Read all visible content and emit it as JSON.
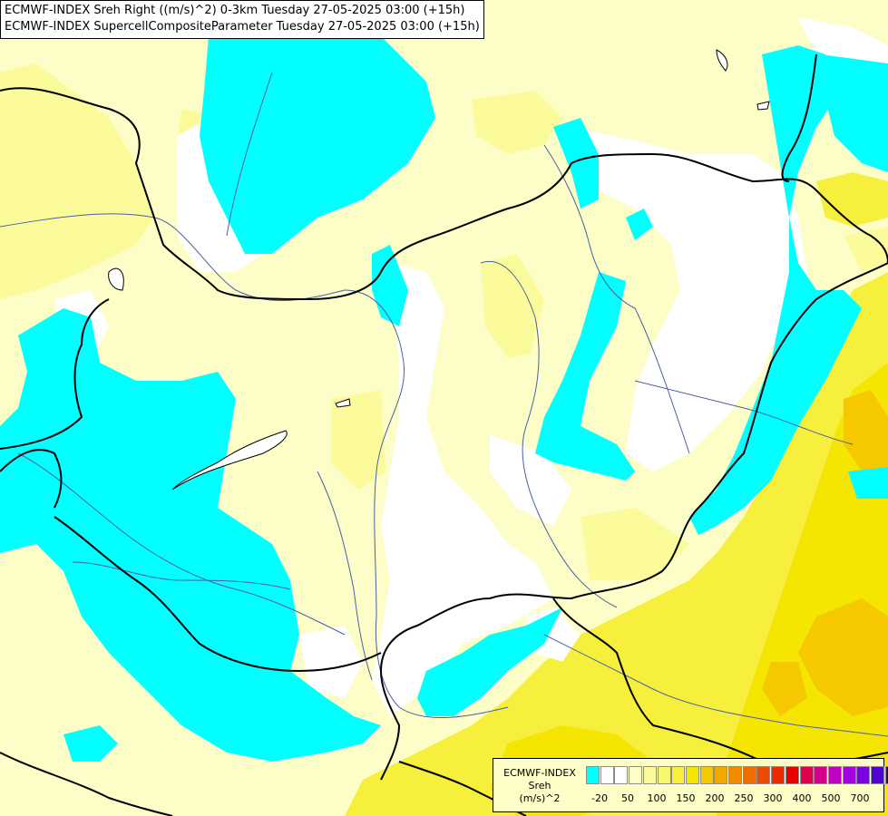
{
  "header": {
    "title_line1": "ECMWF-INDEX Sreh Right ((m/s)^2) 0-3km Tuesday 27-05-2025 03:00 (+15h)",
    "title_line2": "ECMWF-INDEX SupercellCompositeParameter Tuesday 27-05-2025 03:00 (+15h)"
  },
  "legend": {
    "label_line1": "ECMWF-INDEX",
    "label_line2": "Sreh",
    "label_line3": "(m/s)^2",
    "swatches": [
      {
        "color": "#00ffff",
        "name": "below -20"
      },
      {
        "color": "#ffffff",
        "name": "-20 to 0"
      },
      {
        "color": "#ffffff",
        "name": "0 to 25"
      },
      {
        "color": "#fdfdc8",
        "name": "25 to 50"
      },
      {
        "color": "#fbfb9c",
        "name": "50 to 75"
      },
      {
        "color": "#f8f870",
        "name": "75 to 100"
      },
      {
        "color": "#f6f03c",
        "name": "100 to 125"
      },
      {
        "color": "#f4e600",
        "name": "125 to 150"
      },
      {
        "color": "#f5c800",
        "name": "150 to 175"
      },
      {
        "color": "#f3a800",
        "name": "175 to 200"
      },
      {
        "color": "#f08c00",
        "name": "200 to 225"
      },
      {
        "color": "#ef6c00",
        "name": "225 to 250"
      },
      {
        "color": "#ec4c00",
        "name": "250 to 275"
      },
      {
        "color": "#ea2a00",
        "name": "275 to 300"
      },
      {
        "color": "#e80000",
        "name": "300 to 350"
      },
      {
        "color": "#e0004c",
        "name": "350 to 400"
      },
      {
        "color": "#d4008c",
        "name": "400 to 450"
      },
      {
        "color": "#c000c0",
        "name": "450 to 500"
      },
      {
        "color": "#a000e0",
        "name": "500 to 550"
      },
      {
        "color": "#7a00e6",
        "name": "550 to 600"
      },
      {
        "color": "#5000d0",
        "name": "600 to 700"
      },
      {
        "color": "#2c00a8",
        "name": "700 to 800"
      },
      {
        "color": "#000080",
        "name": "above 800"
      }
    ],
    "ticks": [
      "-20",
      "50",
      "100",
      "150",
      "200",
      "250",
      "300",
      "400",
      "500",
      "700"
    ]
  },
  "map": {
    "background_color": "#fdfdc8",
    "field_colors": {
      "negative_helicity": "#00ffff",
      "near_zero": "#ffffff",
      "low": "#fdfdc8",
      "moderate": "#fbfb9c",
      "elevated": "#f6f03c",
      "high": "#f4e600",
      "very_high": "#f5c800"
    },
    "boundary_color": "#000000",
    "river_color": "#4a5fa6"
  }
}
